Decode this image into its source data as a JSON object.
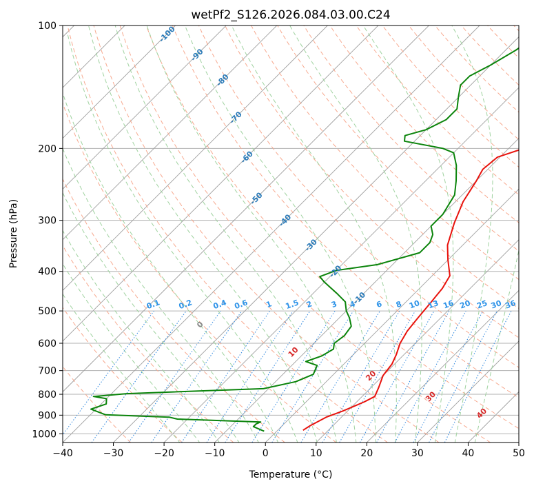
{
  "chart_data": {
    "type": "line",
    "subtype": "skew-t log-p",
    "title": "wetPf2_S126.2026.084.03.00.C24",
    "xlabel": "Temperature (°C)",
    "ylabel": "Pressure (hPa)",
    "xlim": [
      -40,
      50
    ],
    "ylim_hpa": [
      1050,
      100
    ],
    "y_scale": "log",
    "x_ticks": [
      -40,
      -30,
      -20,
      -10,
      0,
      10,
      20,
      30,
      40,
      50
    ],
    "y_ticks": [
      100,
      200,
      300,
      400,
      500,
      600,
      700,
      800,
      900,
      1000
    ],
    "grid": true,
    "series": [
      {
        "key": "temperature",
        "color": "#e8120c",
        "points": [
          [
            5,
            980
          ],
          [
            5.5,
            955
          ],
          [
            7,
            910
          ],
          [
            9,
            880
          ],
          [
            11.5,
            835
          ],
          [
            12.5,
            810
          ],
          [
            11.5,
            770
          ],
          [
            10,
            720
          ],
          [
            9.5,
            675
          ],
          [
            8.5,
            640
          ],
          [
            7,
            600
          ],
          [
            6,
            560
          ],
          [
            5.5,
            520
          ],
          [
            5,
            475
          ],
          [
            4.5,
            440
          ],
          [
            3.5,
            410
          ],
          [
            0,
            375
          ],
          [
            -3,
            345
          ],
          [
            -6,
            305
          ],
          [
            -8.5,
            270
          ],
          [
            -10,
            240
          ],
          [
            -11,
            225
          ],
          [
            -10.5,
            210
          ],
          [
            -7,
            200
          ],
          [
            -3,
            195
          ],
          [
            -1,
            190
          ],
          [
            -0.5,
            180
          ],
          [
            -1,
            170
          ],
          [
            -5,
            155
          ],
          [
            -9,
            140
          ],
          [
            -14,
            130
          ],
          [
            -18,
            120
          ],
          [
            -23,
            112
          ],
          [
            -28,
            103
          ],
          [
            -31,
            97
          ]
        ]
      },
      {
        "key": "dewpoint",
        "color": "#0b840b",
        "points": [
          [
            -2.5,
            985
          ],
          [
            -5.5,
            960
          ],
          [
            -5.5,
            945
          ],
          [
            -5,
            935
          ],
          [
            -22,
            920
          ],
          [
            -24,
            910
          ],
          [
            -37,
            898
          ],
          [
            -41,
            870
          ],
          [
            -39,
            845
          ],
          [
            -40,
            820
          ],
          [
            -43,
            810
          ],
          [
            -37,
            797
          ],
          [
            -11,
            775
          ],
          [
            -6,
            745
          ],
          [
            -4,
            715
          ],
          [
            -5,
            680
          ],
          [
            -8,
            665
          ],
          [
            -6,
            645
          ],
          [
            -5,
            620
          ],
          [
            -6,
            600
          ],
          [
            -5.5,
            575
          ],
          [
            -6,
            545
          ],
          [
            -8,
            520
          ],
          [
            -10,
            500
          ],
          [
            -12,
            475
          ],
          [
            -15,
            455
          ],
          [
            -20,
            425
          ],
          [
            -22,
            412
          ],
          [
            -20,
            398
          ],
          [
            -13,
            385
          ],
          [
            -7,
            360
          ],
          [
            -7,
            340
          ],
          [
            -8,
            325
          ],
          [
            -10,
            310
          ],
          [
            -10,
            290
          ],
          [
            -11,
            270
          ],
          [
            -11.5,
            260
          ],
          [
            -14,
            240
          ],
          [
            -17,
            220
          ],
          [
            -20,
            205
          ],
          [
            -23,
            200
          ],
          [
            -32,
            192
          ],
          [
            -33,
            186
          ],
          [
            -30,
            180
          ],
          [
            -28,
            170
          ],
          [
            -28,
            160
          ],
          [
            -30,
            150
          ],
          [
            -32,
            140
          ],
          [
            -32,
            133
          ],
          [
            -30,
            125
          ],
          [
            -28,
            115
          ],
          [
            -27,
            108
          ],
          [
            -27,
            102
          ],
          [
            -25.5,
            97
          ]
        ]
      }
    ],
    "mixing_ratio_labels": [
      "0.1",
      "0.2",
      "0.4",
      "0.6",
      "1",
      "1.5",
      "2",
      "3",
      "4",
      "6",
      "8",
      "10",
      "13",
      "16",
      "20",
      "25",
      "30",
      "36"
    ],
    "dry_adiabat_labels": [
      "-100",
      "-90",
      "-80",
      "-70",
      "-60",
      "-50",
      "-40",
      "-30",
      "-20",
      "-10"
    ],
    "moist_adiabat_labels": [
      "0",
      "10",
      "20",
      "30",
      "40"
    ],
    "colors": {
      "temperature": "#e8120c",
      "dewpoint": "#0b840b",
      "isobar_grid": "#b0b0b0",
      "isotherm_grid": "#a0a0a0",
      "dry_adiabat": "#f7a98f",
      "moist_adiabat": "#9fd29f",
      "mixing_ratio": "#3c8fe0",
      "dry_label": "#2b7bb9",
      "moist_label": "#d62728",
      "mixing_label": "#2e93e8",
      "zero_label": "#888888"
    }
  }
}
